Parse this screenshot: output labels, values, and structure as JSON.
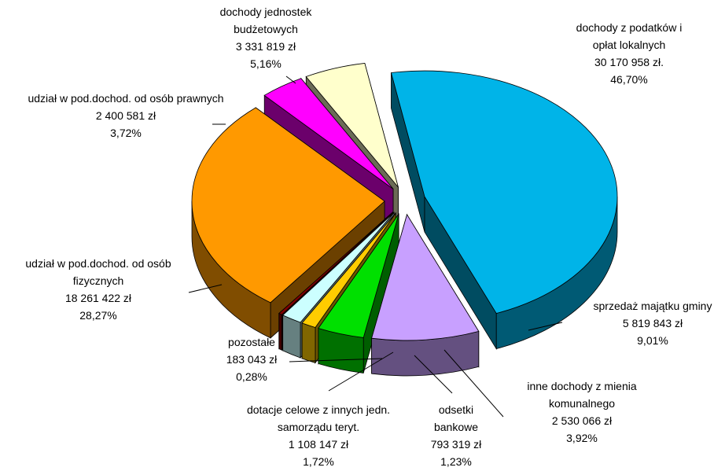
{
  "chart_data": {
    "type": "pie",
    "categories": [
      "dochody z podatków i opłat lokalnych",
      "sprzedaż majątku gminy",
      "inne dochody z mienia komunalnego",
      "odsetki bankowe",
      "dotacje celowe z innych jedn. samorządu teryt.",
      "pozostałe",
      "udział w pod.dochod. od osób fizycznych",
      "udział w pod.dochod. od osób prawnych",
      "dochody jednostek budżetowych"
    ],
    "values": [
      30170958,
      5819843,
      2530066,
      793319,
      1108147,
      183043,
      18261422,
      2400581,
      3331819
    ],
    "value_labels": [
      "30 170 958 zł.",
      "5 819 843 zł",
      "2 530 066 zł",
      "793 319 zł",
      "1 108 147 zł",
      "183 043 zł",
      "18 261 422 zł",
      "2 400 581 zł",
      "3 331 819 zł"
    ],
    "shares": [
      46.7,
      9.01,
      3.92,
      1.23,
      1.72,
      0.28,
      28.27,
      3.72,
      5.16
    ],
    "share_labels": [
      "46,70%",
      "9,01%",
      "3,92%",
      "1,23%",
      "1,72%",
      "0,28%",
      "28,27%",
      "3,72%",
      "5,16%"
    ],
    "colors": [
      "#00b4e8",
      "#c8a0ff",
      "#00e000",
      "#ffcc00",
      "#ccffff",
      "#800000",
      "#ff9900",
      "#ff00ff",
      "#ffffcc"
    ]
  }
}
